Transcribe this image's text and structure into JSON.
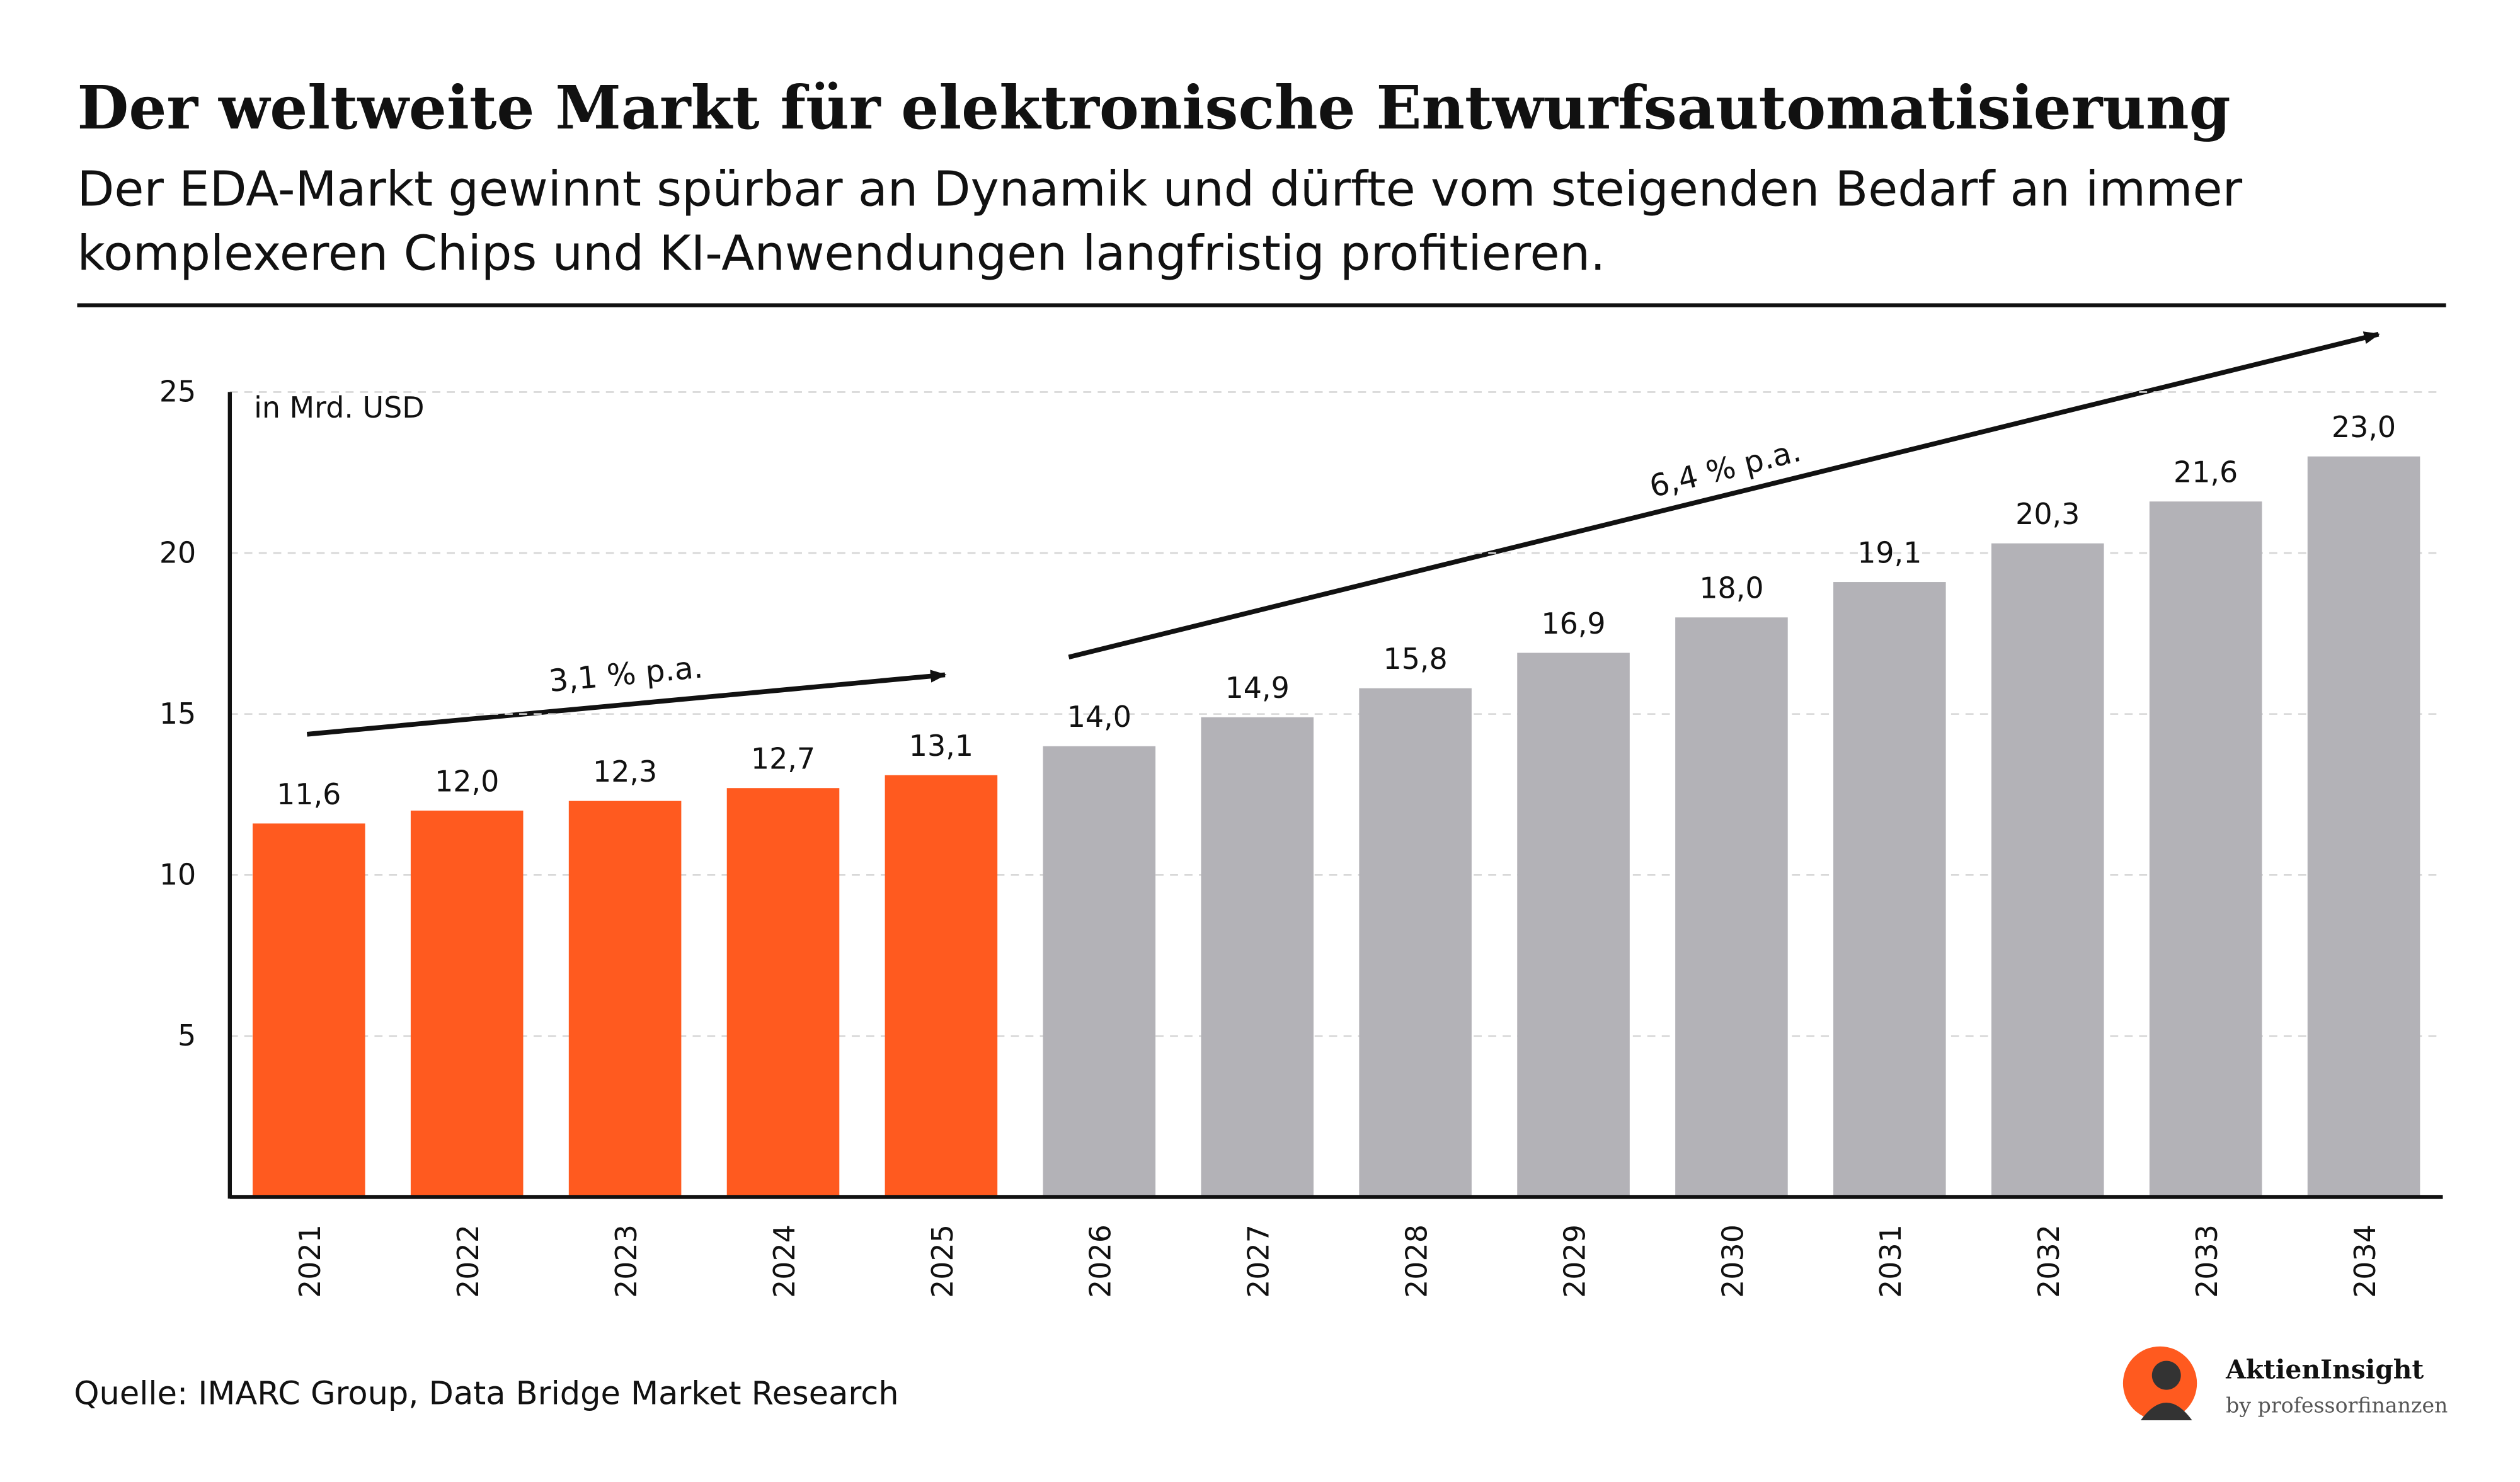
{
  "chart_data": {
    "type": "bar",
    "title": "Der weltweite Markt für elektronische Entwurfsautomatisierung",
    "subtitle": [
      "Der EDA-Markt gewinnt spürbar an Dynamik und dürfte vom steigenden Bedarf an immer",
      "komplexeren Chips und KI-Anwendungen langfristig profitieren."
    ],
    "y_label": "in Mrd. USD",
    "categories": [
      "2021",
      "2022",
      "2023",
      "2024",
      "2025",
      "2026",
      "2027",
      "2028",
      "2029",
      "2030",
      "2031",
      "2032",
      "2033",
      "2034"
    ],
    "values": [
      11.6,
      12.0,
      12.3,
      12.7,
      13.1,
      14.0,
      14.9,
      15.8,
      16.9,
      18.0,
      19.1,
      20.3,
      21.6,
      23.0
    ],
    "value_labels": [
      "11,6",
      "12,0",
      "12,3",
      "12,7",
      "13,1",
      "14,0",
      "14,9",
      "15,8",
      "16,9",
      "18,0",
      "19,1",
      "20,3",
      "21,6",
      "23,0"
    ],
    "colors": [
      "#ff5a1f",
      "#ff5a1f",
      "#ff5a1f",
      "#ff5a1f",
      "#ff5a1f",
      "#b3b2b7",
      "#b3b2b7",
      "#b3b2b7",
      "#b3b2b7",
      "#b3b2b7",
      "#b3b2b7",
      "#b3b2b7",
      "#b3b2b7",
      "#b3b2b7"
    ],
    "ylim": [
      0,
      25
    ],
    "yticks": [
      5,
      10,
      15,
      20,
      25
    ],
    "grid": true,
    "annotations": [
      {
        "text": "3,1 % p.a."
      },
      {
        "text": "6,4 % p.a."
      }
    ],
    "source": "Quelle: IMARC Group, Data Bridge Market Research",
    "brand": "AktienInsight",
    "brand_sub": "by professorfinanzen"
  }
}
